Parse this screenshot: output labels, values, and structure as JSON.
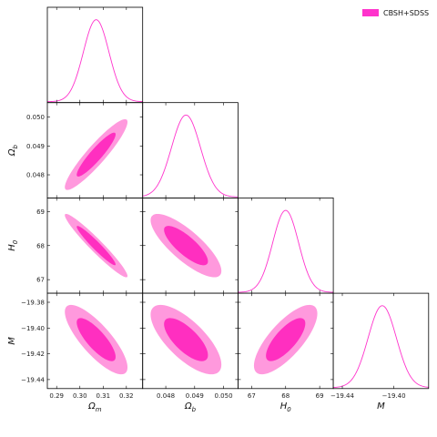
{
  "legend": {
    "label": "CBSH+SDSS",
    "color": "#ff33cc"
  },
  "colors": {
    "inner": "#ff2fc0",
    "outer": "#ff99dd",
    "line": "#ff33cc",
    "frame": "#000000"
  },
  "chart_data": {
    "type": "corner",
    "series": [
      {
        "name": "CBSH+SDSS"
      }
    ],
    "parameters": [
      {
        "key": "om",
        "label": "Ωm",
        "sub": "m",
        "mean": 0.307,
        "sigma": 0.0055,
        "range": [
          0.286,
          0.327
        ],
        "ticks": [
          "0.29",
          "0.30",
          "0.31",
          "0.32"
        ],
        "tick_values": [
          0.29,
          0.3,
          0.31,
          0.32
        ]
      },
      {
        "key": "ob",
        "label": "Ωb",
        "sub": "b",
        "mean": 0.0487,
        "sigma": 0.0005,
        "range": [
          0.0472,
          0.0505
        ],
        "ticks": [
          "0.048",
          "0.049",
          "0.050"
        ],
        "tick_values": [
          0.048,
          0.049,
          0.05
        ]
      },
      {
        "key": "h0",
        "label": "H0",
        "sub": "0",
        "mean": 68.0,
        "sigma": 0.38,
        "range": [
          66.6,
          69.4
        ],
        "ticks": [
          "67",
          "68",
          "69"
        ],
        "tick_values": [
          67,
          68,
          69
        ]
      },
      {
        "key": "m",
        "label": "M",
        "sub": "",
        "mean": -19.409,
        "sigma": 0.011,
        "range": [
          -19.447,
          -19.373
        ],
        "ticks": [
          "−19.44",
          "−19.40"
        ],
        "tick_values": [
          -19.44,
          -19.4
        ],
        "yticks": [
          "−19.38",
          "−19.40",
          "−19.42",
          "−19.44"
        ],
        "ytick_values": [
          -19.38,
          -19.4,
          -19.42,
          -19.44
        ]
      }
    ],
    "correlations": {
      "om|ob": 0.92,
      "om|h0": -0.96,
      "ob|h0": -0.8,
      "om|m": -0.8,
      "ob|m": -0.72,
      "h0|m": 0.75
    },
    "contour_levels": [
      "68%",
      "95%"
    ]
  }
}
